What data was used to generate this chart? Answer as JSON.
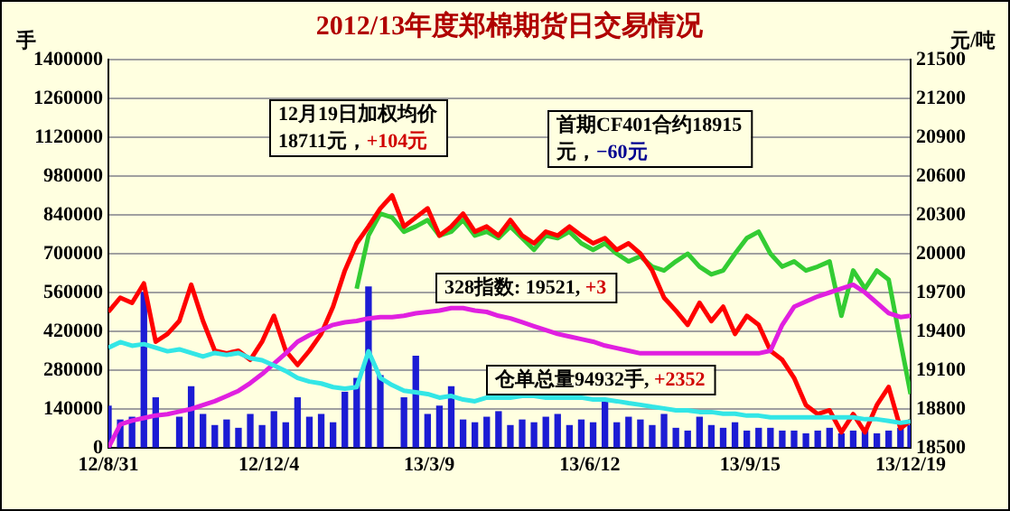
{
  "chart_data": {
    "type": "line",
    "title": "2012/13年度郑棉期货日交易情况",
    "ylabel": "手",
    "y2label": "元/吨",
    "x": [
      "2012-08-31",
      "2012-09-07",
      "2012-09-14",
      "2012-09-21",
      "2012-09-28",
      "2012-10-05",
      "2012-10-12",
      "2012-10-19",
      "2012-10-26",
      "2012-11-02",
      "2012-11-09",
      "2012-11-16",
      "2012-11-23",
      "2012-11-30",
      "2012-12-07",
      "2012-12-14",
      "2012-12-21",
      "2012-12-28",
      "2013-01-04",
      "2013-01-11",
      "2013-01-18",
      "2013-01-25",
      "2013-02-01",
      "2013-02-08",
      "2013-02-15",
      "2013-02-22",
      "2013-03-01",
      "2013-03-08",
      "2013-03-15",
      "2013-03-22",
      "2013-03-29",
      "2013-04-05",
      "2013-04-12",
      "2013-04-19",
      "2013-04-26",
      "2013-05-03",
      "2013-05-10",
      "2013-05-17",
      "2013-05-24",
      "2013-05-31",
      "2013-06-07",
      "2013-06-14",
      "2013-06-21",
      "2013-06-28",
      "2013-07-05",
      "2013-07-12",
      "2013-07-19",
      "2013-07-26",
      "2013-08-02",
      "2013-08-09",
      "2013-08-16",
      "2013-08-23",
      "2013-08-30",
      "2013-09-06",
      "2013-09-13",
      "2013-09-20",
      "2013-09-27",
      "2013-10-04",
      "2013-10-11",
      "2013-10-18",
      "2013-10-25",
      "2013-11-01",
      "2013-11-08",
      "2013-11-15",
      "2013-11-22",
      "2013-11-29",
      "2013-12-06",
      "2013-12-13",
      "2013-12-19"
    ],
    "series": [
      {
        "type": "bar",
        "color": "#1c1cd4",
        "values": [
          150000,
          100000,
          110000,
          560000,
          180000,
          null,
          110000,
          220000,
          120000,
          80000,
          100000,
          70000,
          120000,
          80000,
          130000,
          90000,
          180000,
          110000,
          120000,
          90000,
          200000,
          250000,
          580000,
          260000,
          null,
          180000,
          330000,
          120000,
          150000,
          220000,
          100000,
          90000,
          110000,
          130000,
          80000,
          100000,
          90000,
          110000,
          120000,
          80000,
          100000,
          90000,
          170000,
          90000,
          110000,
          100000,
          80000,
          120000,
          70000,
          60000,
          110000,
          80000,
          70000,
          90000,
          60000,
          70000,
          70000,
          60000,
          60000,
          50000,
          60000,
          70000,
          50000,
          60000,
          70000,
          50000,
          60000,
          70000,
          80000
        ]
      },
      {
        "color": "#33e6e6",
        "values": [
          361000,
          381000,
          368000,
          374000,
          361000,
          348000,
          355000,
          342000,
          329000,
          342000,
          335000,
          342000,
          323000,
          316000,
          297000,
          277000,
          252000,
          239000,
          232000,
          219000,
          213000,
          219000,
          348000,
          252000,
          226000,
          206000,
          200000,
          194000,
          181000,
          187000,
          174000,
          168000,
          181000,
          181000,
          181000,
          187000,
          187000,
          181000,
          181000,
          181000,
          181000,
          174000,
          174000,
          168000,
          161000,
          155000,
          148000,
          142000,
          135000,
          135000,
          129000,
          129000,
          123000,
          123000,
          116000,
          116000,
          110000,
          110000,
          110000,
          110000,
          110000,
          110000,
          110000,
          110000,
          103000,
          103000,
          97000,
          90000,
          94932
        ]
      },
      {
        "axis": "y2",
        "color": "#e020e0",
        "values": [
          18500,
          18680,
          18710,
          18730,
          18750,
          18760,
          18780,
          18800,
          18830,
          18860,
          18900,
          18940,
          19000,
          19070,
          19150,
          19230,
          19320,
          19370,
          19410,
          19450,
          19470,
          19480,
          19500,
          19510,
          19510,
          19520,
          19540,
          19550,
          19560,
          19580,
          19580,
          19560,
          19550,
          19520,
          19500,
          19470,
          19440,
          19410,
          19380,
          19360,
          19340,
          19320,
          19290,
          19270,
          19250,
          19230,
          19230,
          19230,
          19230,
          19230,
          19230,
          19230,
          19230,
          19230,
          19230,
          19230,
          19250,
          19450,
          19590,
          19630,
          19670,
          19700,
          19730,
          19760,
          19700,
          19620,
          19540,
          19510,
          19521
        ]
      },
      {
        "axis": "y2",
        "color": "#ff0000",
        "values": [
          19550,
          19660,
          19620,
          19770,
          19320,
          19380,
          19480,
          19760,
          19480,
          19250,
          19230,
          19250,
          19180,
          19320,
          19520,
          19250,
          19140,
          19250,
          19380,
          19590,
          19870,
          20080,
          20210,
          20350,
          20450,
          20210,
          20280,
          20350,
          20140,
          20210,
          20310,
          20170,
          20210,
          20140,
          20260,
          20140,
          20080,
          20170,
          20140,
          20210,
          20140,
          20080,
          20120,
          20030,
          20080,
          20000,
          19870,
          19660,
          19560,
          19450,
          19620,
          19480,
          19590,
          19380,
          19520,
          19450,
          19250,
          19180,
          19040,
          18830,
          18760,
          18790,
          18620,
          18760,
          18620,
          18830,
          18970,
          18650,
          18711
        ]
      },
      {
        "axis": "y2",
        "color": "#33cc33",
        "values": [
          null,
          null,
          null,
          null,
          null,
          null,
          null,
          null,
          null,
          null,
          null,
          null,
          null,
          null,
          null,
          null,
          null,
          null,
          null,
          null,
          null,
          19730,
          20140,
          20310,
          20280,
          20170,
          20210,
          20260,
          20140,
          20170,
          20260,
          20140,
          20170,
          20120,
          20210,
          20120,
          20030,
          20140,
          20120,
          20170,
          20080,
          20030,
          20080,
          20000,
          19940,
          19980,
          19900,
          19870,
          19940,
          20000,
          19900,
          19840,
          19870,
          20000,
          20120,
          20170,
          20000,
          19900,
          19940,
          19870,
          19900,
          19940,
          19520,
          19870,
          19730,
          19870,
          19800,
          19320,
          18915
        ]
      }
    ],
    "xlim": [
      "2012-08-31",
      "2013-12-19"
    ],
    "xticks": [
      {
        "value": "2012-08-31",
        "label": "12/8/31"
      },
      {
        "value": "2012-12-04",
        "label": "12/12/4"
      },
      {
        "value": "2013-03-09",
        "label": "13/3/9"
      },
      {
        "value": "2013-06-12",
        "label": "13/6/12"
      },
      {
        "value": "2013-09-15",
        "label": "13/9/15"
      },
      {
        "value": "2013-12-19",
        "label": "13/12/19"
      }
    ],
    "ylim": [
      0,
      1400000
    ],
    "yticks": [
      0,
      140000,
      280000,
      420000,
      560000,
      700000,
      840000,
      980000,
      1120000,
      1260000,
      1400000
    ],
    "y2lim": [
      18500,
      21500
    ],
    "y2ticks": [
      18500,
      18800,
      19100,
      19400,
      19700,
      20000,
      20300,
      20600,
      20900,
      21200,
      21500
    ],
    "annotations": [
      "12月19日加权均价\n18711元，+104元",
      "首期CF401合约18915\n元，−60元",
      "328指数: 19521, +3",
      "仓单总量94932手, +2352"
    ],
    "grid": "y",
    "legend": false,
    "marker": "none",
    "line_style": "solid"
  }
}
